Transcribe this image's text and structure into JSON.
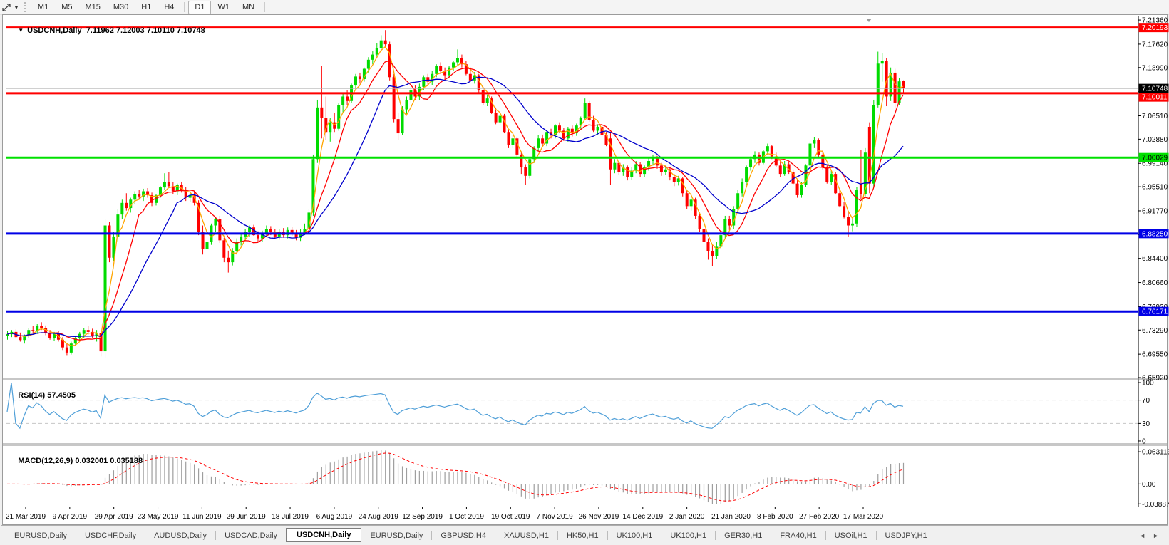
{
  "toolbar": {
    "timeframes": [
      "M1",
      "M5",
      "M15",
      "M30",
      "H1",
      "H4",
      "D1",
      "W1",
      "MN"
    ],
    "active_timeframe": "D1",
    "tool_icon": "crosshair-icon"
  },
  "chart_header": {
    "symbol_label": "USDCNH,Daily",
    "ohlc_text": "7.11962 7.12003 7.10110 7.10748"
  },
  "indicators": {
    "rsi_label": "RSI(14)",
    "rsi_value": "57.4505",
    "macd_label": "MACD(12,26,9)",
    "macd_values": "0.032001 0.035188"
  },
  "tabs": {
    "items": [
      "EURUSD,Daily",
      "USDCHF,Daily",
      "AUDUSD,Daily",
      "USDCAD,Daily",
      "USDCNH,Daily",
      "EURUSD,Daily",
      "GBPUSD,H4",
      "XAUUSD,H1",
      "HK50,H1",
      "UK100,H1",
      "UK100,H1",
      "GER30,H1",
      "FRA40,H1",
      "USOil,H1",
      "USDJPY,H1"
    ],
    "active_index": 4,
    "scroll_left_icon": "left-arrow",
    "scroll_right_icon": "right-arrow"
  },
  "chart_data": {
    "type": "candlestick",
    "symbol": "USDCNH",
    "timeframe": "Daily",
    "last_bar": {
      "open": 7.11962,
      "high": 7.12003,
      "low": 7.1011,
      "close": 7.10748
    },
    "candle_colors": {
      "up": "#00DB00",
      "down": "#FF0000"
    },
    "y_axis": {
      "price_max": 7.2203,
      "price_min": 6.6592,
      "ticks": [
        7.2136,
        7.1762,
        7.1399,
        7.1025,
        7.0651,
        7.0288,
        6.9914,
        6.9551,
        6.9177,
        6.88085,
        6.844,
        6.8066,
        6.7692,
        6.7329,
        6.6955,
        6.6592
      ]
    },
    "h_lines": [
      {
        "price": 7.20193,
        "color": "#FF0000",
        "label": "7.20193",
        "text_color": "#FFFFFF"
      },
      {
        "price": 7.10011,
        "color": "#FF0000",
        "label": "7.10011",
        "text_color": "#FFFFFF"
      },
      {
        "price": 7.00029,
        "color": "#00E000",
        "label": "7.00029",
        "text_color": "#000000"
      },
      {
        "price": 6.8825,
        "color": "#0000E6",
        "label": "6.88250",
        "text_color": "#FFFFFF"
      },
      {
        "price": 6.76171,
        "color": "#0000E6",
        "label": "6.76171",
        "text_color": "#FFFFFF"
      }
    ],
    "current_price": {
      "value": 7.10748,
      "label": "7.10748",
      "box_color": "#000000",
      "line_color": "#b4b4b4"
    },
    "dates": [
      "21 Mar 2019",
      "9 Apr 2019",
      "29 Apr 2019",
      "23 May 2019",
      "11 Jun 2019",
      "29 Jun 2019",
      "18 Jul 2019",
      "6 Aug 2019",
      "24 Aug 2019",
      "12 Sep 2019",
      "1 Oct 2019",
      "19 Oct 2019",
      "7 Nov 2019",
      "26 Nov 2019",
      "14 Dec 2019",
      "2 Jan 2020",
      "21 Jan 2020",
      "8 Feb 2020",
      "27 Feb 2020",
      "17 Mar 2020"
    ],
    "moving_averages": [
      {
        "period": 4,
        "color": "#FFA500"
      },
      {
        "period": 9,
        "color": "#FF0000"
      },
      {
        "period": 18,
        "color": "#0000CC"
      }
    ],
    "rsi": {
      "period": 14,
      "levels": [
        70,
        30
      ],
      "ticks": [
        100,
        70,
        30,
        0
      ],
      "color": "#4F9FD8",
      "last": 57.4505
    },
    "macd": {
      "fast": 12,
      "slow": 26,
      "signal": 9,
      "ticks": [
        {
          "v": 0.063113,
          "label": "0.063113"
        },
        {
          "v": 0,
          "label": "0.00"
        },
        {
          "v": -0.038872,
          "label": "-0.038872"
        }
      ],
      "histogram_color": "#9E9E9E",
      "signal_color": "#FF0000",
      "last_macd": 0.032001,
      "last_signal": 0.035188
    },
    "candles": [
      [
        6.724,
        6.731,
        6.718,
        6.7265
      ],
      [
        6.7265,
        6.733,
        6.722,
        6.73
      ],
      [
        6.73,
        6.734,
        6.7195,
        6.722
      ],
      [
        6.722,
        6.729,
        6.715,
        6.7175
      ],
      [
        6.7175,
        6.726,
        6.712,
        6.7235
      ],
      [
        6.7235,
        6.736,
        6.72,
        6.733
      ],
      [
        6.733,
        6.7395,
        6.728,
        6.731
      ],
      [
        6.731,
        6.742,
        6.727,
        6.7395
      ],
      [
        6.7395,
        6.745,
        6.733,
        6.736
      ],
      [
        6.736,
        6.74,
        6.725,
        6.728
      ],
      [
        6.728,
        6.733,
        6.718,
        6.721
      ],
      [
        6.721,
        6.73,
        6.716,
        6.727
      ],
      [
        6.727,
        6.732,
        6.715,
        6.718
      ],
      [
        6.718,
        6.722,
        6.702,
        6.706
      ],
      [
        6.706,
        6.713,
        6.693,
        6.698
      ],
      [
        6.698,
        6.715,
        6.695,
        6.712
      ],
      [
        6.712,
        6.724,
        6.708,
        6.721
      ],
      [
        6.721,
        6.73,
        6.715,
        6.727
      ],
      [
        6.727,
        6.736,
        6.721,
        6.733
      ],
      [
        6.733,
        6.739,
        6.726,
        6.73
      ],
      [
        6.73,
        6.735,
        6.72,
        6.724
      ],
      [
        6.724,
        6.733,
        6.715,
        6.728
      ],
      [
        6.728,
        6.742,
        6.692,
        6.7
      ],
      [
        6.7,
        6.905,
        6.69,
        6.895
      ],
      [
        6.895,
        6.9,
        6.838,
        6.845
      ],
      [
        6.845,
        6.885,
        6.84,
        6.878
      ],
      [
        6.878,
        6.92,
        6.87,
        6.912
      ],
      [
        6.912,
        6.935,
        6.905,
        6.93
      ],
      [
        6.93,
        6.945,
        6.918,
        6.922
      ],
      [
        6.922,
        6.938,
        6.915,
        6.935
      ],
      [
        6.935,
        6.948,
        6.928,
        6.944
      ],
      [
        6.944,
        6.95,
        6.935,
        6.94
      ],
      [
        6.94,
        6.952,
        6.933,
        6.948
      ],
      [
        6.948,
        6.953,
        6.938,
        6.942
      ],
      [
        6.942,
        6.946,
        6.925,
        6.93
      ],
      [
        6.93,
        6.944,
        6.926,
        6.942
      ],
      [
        6.942,
        6.956,
        6.938,
        6.954
      ],
      [
        6.954,
        6.976,
        6.95,
        6.962
      ],
      [
        6.962,
        6.978,
        6.954,
        6.956
      ],
      [
        6.956,
        6.962,
        6.944,
        6.948
      ],
      [
        6.948,
        6.96,
        6.942,
        6.958
      ],
      [
        6.958,
        6.963,
        6.946,
        6.95
      ],
      [
        6.95,
        6.955,
        6.933,
        6.938
      ],
      [
        6.938,
        6.948,
        6.932,
        6.942
      ],
      [
        6.942,
        6.947,
        6.926,
        6.93
      ],
      [
        6.93,
        6.934,
        6.88,
        6.885
      ],
      [
        6.885,
        6.895,
        6.85,
        6.858
      ],
      [
        6.858,
        6.878,
        6.852,
        6.87
      ],
      [
        6.87,
        6.898,
        6.865,
        6.895
      ],
      [
        6.895,
        6.908,
        6.885,
        6.905
      ],
      [
        6.905,
        6.91,
        6.868,
        6.872
      ],
      [
        6.872,
        6.876,
        6.838,
        6.845
      ],
      [
        6.845,
        6.856,
        6.822,
        6.838
      ],
      [
        6.838,
        6.86,
        6.833,
        6.855
      ],
      [
        6.855,
        6.875,
        6.85,
        6.87
      ],
      [
        6.87,
        6.882,
        6.864,
        6.878
      ],
      [
        6.878,
        6.89,
        6.872,
        6.885
      ],
      [
        6.885,
        6.895,
        6.878,
        6.892
      ],
      [
        6.892,
        6.896,
        6.879,
        6.88
      ],
      [
        6.88,
        6.886,
        6.87,
        6.875
      ],
      [
        6.875,
        6.887,
        6.87,
        6.883
      ],
      [
        6.883,
        6.895,
        6.878,
        6.89
      ],
      [
        6.89,
        6.894,
        6.88,
        6.885
      ],
      [
        6.885,
        6.89,
        6.874,
        6.878
      ],
      [
        6.878,
        6.889,
        6.873,
        6.885
      ],
      [
        6.885,
        6.891,
        6.876,
        6.88
      ],
      [
        6.88,
        6.892,
        6.875,
        6.888
      ],
      [
        6.888,
        6.893,
        6.879,
        6.882
      ],
      [
        6.882,
        6.888,
        6.872,
        6.876
      ],
      [
        6.876,
        6.89,
        6.871,
        6.884
      ],
      [
        6.884,
        6.898,
        6.88,
        6.89
      ],
      [
        6.89,
        6.92,
        6.886,
        6.915
      ],
      [
        6.915,
        7.005,
        6.91,
        6.998
      ],
      [
        6.998,
        7.09,
        6.992,
        7.078
      ],
      [
        7.078,
        7.143,
        7.03,
        7.062
      ],
      [
        7.062,
        7.095,
        7.028,
        7.04
      ],
      [
        7.04,
        7.062,
        7.025,
        7.055
      ],
      [
        7.055,
        7.07,
        7.04,
        7.045
      ],
      [
        7.045,
        7.085,
        7.042,
        7.082
      ],
      [
        7.082,
        7.1,
        7.07,
        7.095
      ],
      [
        7.095,
        7.105,
        7.082,
        7.088
      ],
      [
        7.088,
        7.115,
        7.085,
        7.112
      ],
      [
        7.112,
        7.13,
        7.105,
        7.126
      ],
      [
        7.126,
        7.132,
        7.115,
        7.122
      ],
      [
        7.122,
        7.14,
        7.118,
        7.138
      ],
      [
        7.138,
        7.156,
        7.132,
        7.152
      ],
      [
        7.152,
        7.165,
        7.145,
        7.16
      ],
      [
        7.16,
        7.178,
        7.155,
        7.17
      ],
      [
        7.17,
        7.19,
        7.165,
        7.182
      ],
      [
        7.182,
        7.198,
        7.17,
        7.176
      ],
      [
        7.176,
        7.18,
        7.12,
        7.125
      ],
      [
        7.125,
        7.13,
        7.055,
        7.06
      ],
      [
        7.06,
        7.07,
        7.028,
        7.038
      ],
      [
        7.038,
        7.08,
        7.035,
        7.075
      ],
      [
        7.075,
        7.095,
        7.068,
        7.09
      ],
      [
        7.09,
        7.11,
        7.085,
        7.105
      ],
      [
        7.105,
        7.112,
        7.09,
        7.095
      ],
      [
        7.095,
        7.115,
        7.09,
        7.11
      ],
      [
        7.11,
        7.128,
        7.105,
        7.125
      ],
      [
        7.125,
        7.13,
        7.112,
        7.118
      ],
      [
        7.118,
        7.135,
        7.113,
        7.13
      ],
      [
        7.13,
        7.145,
        7.125,
        7.142
      ],
      [
        7.142,
        7.148,
        7.13,
        7.135
      ],
      [
        7.135,
        7.14,
        7.122,
        7.128
      ],
      [
        7.128,
        7.142,
        7.123,
        7.14
      ],
      [
        7.14,
        7.15,
        7.135,
        7.148
      ],
      [
        7.148,
        7.168,
        7.142,
        7.155
      ],
      [
        7.155,
        7.16,
        7.14,
        7.145
      ],
      [
        7.145,
        7.15,
        7.128,
        7.13
      ],
      [
        7.13,
        7.14,
        7.118,
        7.12
      ],
      [
        7.12,
        7.133,
        7.115,
        7.128
      ],
      [
        7.128,
        7.13,
        7.1,
        7.105
      ],
      [
        7.105,
        7.11,
        7.082,
        7.085
      ],
      [
        7.085,
        7.098,
        7.08,
        7.092
      ],
      [
        7.092,
        7.095,
        7.068,
        7.07
      ],
      [
        7.07,
        7.078,
        7.052,
        7.055
      ],
      [
        7.055,
        7.07,
        7.05,
        7.065
      ],
      [
        7.065,
        7.068,
        7.038,
        7.04
      ],
      [
        7.04,
        7.045,
        7.015,
        7.02
      ],
      [
        7.02,
        7.035,
        7.015,
        7.03
      ],
      [
        7.03,
        7.032,
        7.002,
        7.005
      ],
      [
        7.005,
        7.01,
        6.975,
        6.985
      ],
      [
        6.985,
        6.99,
        6.958,
        6.972
      ],
      [
        6.972,
        7.0,
        6.968,
        6.998
      ],
      [
        6.998,
        7.018,
        6.992,
        7.015
      ],
      [
        7.015,
        7.035,
        7.01,
        7.03
      ],
      [
        7.03,
        7.036,
        7.018,
        7.022
      ],
      [
        7.022,
        7.042,
        7.018,
        7.04
      ],
      [
        7.04,
        7.045,
        7.03,
        7.035
      ],
      [
        7.035,
        7.052,
        7.03,
        7.05
      ],
      [
        7.05,
        7.055,
        7.038,
        7.042
      ],
      [
        7.042,
        7.046,
        7.026,
        7.03
      ],
      [
        7.03,
        7.048,
        7.025,
        7.045
      ],
      [
        7.045,
        7.05,
        7.033,
        7.038
      ],
      [
        7.038,
        7.053,
        7.034,
        7.05
      ],
      [
        7.05,
        7.064,
        7.045,
        7.062
      ],
      [
        7.062,
        7.092,
        7.058,
        7.085
      ],
      [
        7.085,
        7.088,
        7.056,
        7.058
      ],
      [
        7.058,
        7.065,
        7.04,
        7.042
      ],
      [
        7.042,
        7.052,
        7.036,
        7.048
      ],
      [
        7.048,
        7.05,
        7.032,
        7.035
      ],
      [
        7.035,
        7.04,
        7.018,
        7.02
      ],
      [
        7.03,
        7.04,
        6.958,
        6.982
      ],
      [
        6.982,
        6.998,
        6.976,
        6.992
      ],
      [
        6.992,
        6.995,
        6.974,
        6.978
      ],
      [
        6.978,
        6.99,
        6.972,
        6.985
      ],
      [
        6.985,
        6.988,
        6.965,
        6.97
      ],
      [
        6.97,
        6.985,
        6.966,
        6.98
      ],
      [
        6.98,
        6.995,
        6.976,
        6.99
      ],
      [
        6.99,
        6.993,
        6.97,
        6.975
      ],
      [
        6.975,
        6.988,
        6.97,
        6.985
      ],
      [
        6.985,
        7.0,
        6.98,
        6.995
      ],
      [
        6.995,
        7.005,
        6.988,
        7.0
      ],
      [
        7.0,
        7.003,
        6.983,
        6.988
      ],
      [
        6.988,
        6.992,
        6.972,
        6.978
      ],
      [
        6.978,
        6.988,
        6.973,
        6.982
      ],
      [
        6.982,
        6.985,
        6.965,
        6.97
      ],
      [
        6.97,
        6.975,
        6.956,
        6.962
      ],
      [
        6.962,
        6.972,
        6.957,
        6.968
      ],
      [
        6.968,
        6.97,
        6.94,
        6.945
      ],
      [
        6.945,
        6.95,
        6.92,
        6.925
      ],
      [
        6.925,
        6.94,
        6.918,
        6.935
      ],
      [
        6.935,
        6.938,
        6.905,
        6.91
      ],
      [
        6.91,
        6.915,
        6.885,
        6.89
      ],
      [
        6.89,
        6.898,
        6.865,
        6.87
      ],
      [
        6.87,
        6.875,
        6.842,
        6.855
      ],
      [
        6.855,
        6.865,
        6.832,
        6.848
      ],
      [
        6.848,
        6.87,
        6.843,
        6.862
      ],
      [
        6.862,
        6.885,
        6.858,
        6.88
      ],
      [
        6.88,
        6.91,
        6.875,
        6.905
      ],
      [
        6.905,
        6.91,
        6.888,
        6.895
      ],
      [
        6.895,
        6.925,
        6.89,
        6.92
      ],
      [
        6.92,
        6.95,
        6.915,
        6.945
      ],
      [
        6.945,
        6.968,
        6.94,
        6.962
      ],
      [
        6.962,
        6.988,
        6.958,
        6.985
      ],
      [
        6.985,
        7.002,
        6.98,
        6.998
      ],
      [
        6.998,
        7.01,
        6.992,
        7.005
      ],
      [
        7.005,
        7.008,
        6.988,
        6.992
      ],
      [
        6.992,
        7.012,
        6.99,
        7.01
      ],
      [
        7.01,
        7.022,
        7.005,
        7.018
      ],
      [
        7.018,
        7.02,
        6.998,
        7.002
      ],
      [
        7.002,
        7.008,
        6.985,
        6.988
      ],
      [
        6.988,
        6.995,
        6.97,
        6.975
      ],
      [
        6.975,
        6.995,
        6.972,
        6.99
      ],
      [
        6.99,
        6.993,
        6.975,
        6.978
      ],
      [
        6.978,
        6.982,
        6.958,
        6.96
      ],
      [
        6.96,
        6.965,
        6.938,
        6.942
      ],
      [
        6.942,
        6.962,
        6.938,
        6.958
      ],
      [
        6.958,
        6.99,
        6.955,
        6.988
      ],
      [
        6.988,
        7.025,
        6.985,
        7.022
      ],
      [
        7.022,
        7.032,
        7.015,
        7.028
      ],
      [
        7.028,
        7.03,
        7.0,
        7.005
      ],
      [
        7.005,
        7.012,
        6.982,
        6.985
      ],
      [
        6.985,
        6.99,
        6.96,
        6.962
      ],
      [
        6.962,
        6.98,
        6.958,
        6.975
      ],
      [
        6.975,
        6.978,
        6.943,
        6.945
      ],
      [
        6.945,
        6.95,
        6.923,
        6.925
      ],
      [
        6.925,
        6.932,
        6.906,
        6.908
      ],
      [
        6.908,
        6.915,
        6.878,
        6.895
      ],
      [
        6.895,
        6.905,
        6.886,
        6.898
      ],
      [
        6.898,
        6.955,
        6.893,
        6.95
      ],
      [
        6.96,
        7.012,
        6.936,
        6.944
      ],
      [
        6.944,
        7.015,
        6.94,
        7.008
      ],
      [
        7.048,
        7.055,
        6.945,
        6.96
      ],
      [
        6.96,
        7.09,
        6.955,
        7.082
      ],
      [
        7.082,
        7.1645,
        7.078,
        7.146
      ],
      [
        7.146,
        7.162,
        7.118,
        7.15
      ],
      [
        7.15,
        7.155,
        7.08,
        7.095
      ],
      [
        7.095,
        7.14,
        7.088,
        7.132
      ],
      [
        7.132,
        7.138,
        7.075,
        7.085
      ],
      [
        7.085,
        7.124,
        7.082,
        7.1185
      ],
      [
        7.11962,
        7.12003,
        7.1011,
        7.10748
      ]
    ]
  }
}
